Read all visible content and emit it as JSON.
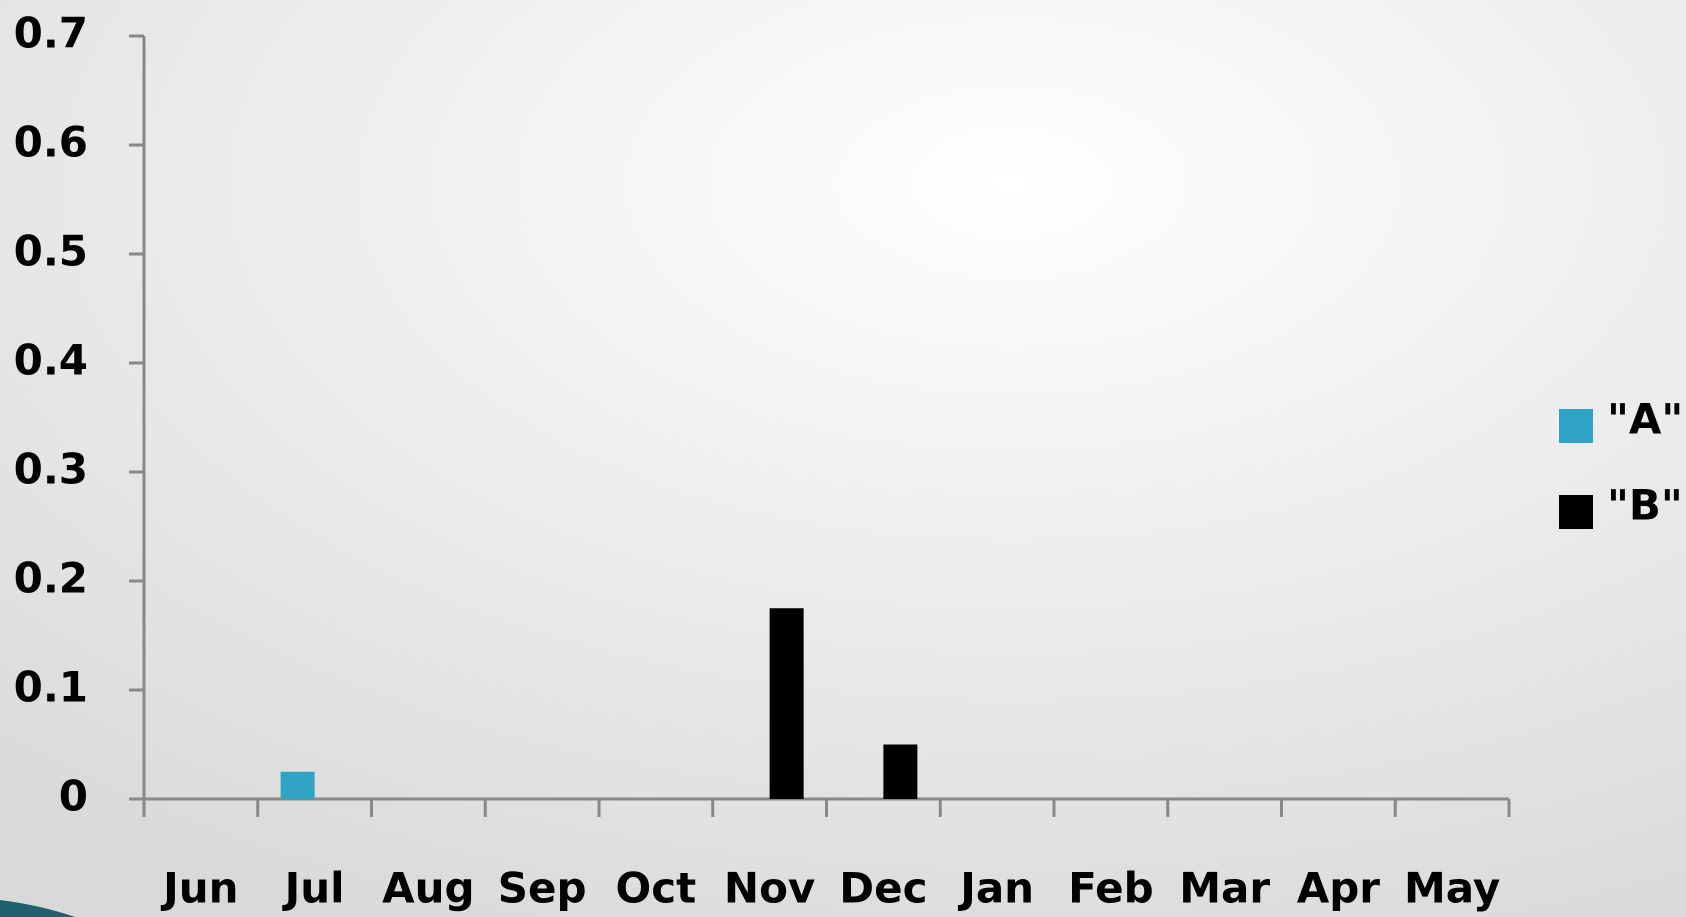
{
  "chart_data": {
    "type": "bar",
    "categories": [
      "Jun",
      "Jul",
      "Aug",
      "Sep",
      "Oct",
      "Nov",
      "Dec",
      "Jan",
      "Feb",
      "Mar",
      "Apr",
      "May"
    ],
    "series": [
      {
        "name": "\"A\"",
        "color": "#2ea3c4",
        "values": [
          0,
          0.025,
          0,
          0,
          0,
          0,
          0,
          0,
          0,
          0,
          0,
          0
        ]
      },
      {
        "name": "\"B\"",
        "color": "#000000",
        "values": [
          0,
          0,
          0,
          0,
          0,
          0.175,
          0.05,
          0,
          0,
          0,
          0,
          0
        ]
      }
    ],
    "ylim": [
      0,
      0.7
    ],
    "yticks": [
      0,
      0.1,
      0.2,
      0.3,
      0.4,
      0.5,
      0.6,
      0.7
    ],
    "grid": false,
    "legend": "right"
  }
}
